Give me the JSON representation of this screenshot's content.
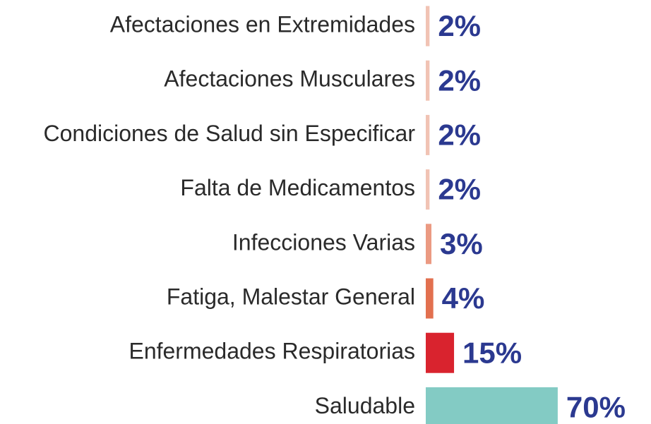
{
  "chart_data": {
    "type": "bar",
    "orientation": "horizontal",
    "categories": [
      "Afectaciones en Extremidades",
      "Afectaciones Musculares",
      "Condiciones de Salud sin Especificar",
      "Falta de Medicamentos",
      "Infecciones Varias",
      "Fatiga, Malestar General",
      "Enfermedades Respiratorias",
      "Saludable"
    ],
    "values": [
      2,
      2,
      2,
      2,
      3,
      4,
      15,
      70
    ],
    "value_labels": [
      "2%",
      "2%",
      "2%",
      "2%",
      "3%",
      "4%",
      "15%",
      "70%"
    ],
    "colors": [
      "#f1c3b4",
      "#f1c3b4",
      "#f1c3b4",
      "#f1c3b4",
      "#eb9a82",
      "#e2704f",
      "#d9232e",
      "#83cbc4"
    ]
  }
}
